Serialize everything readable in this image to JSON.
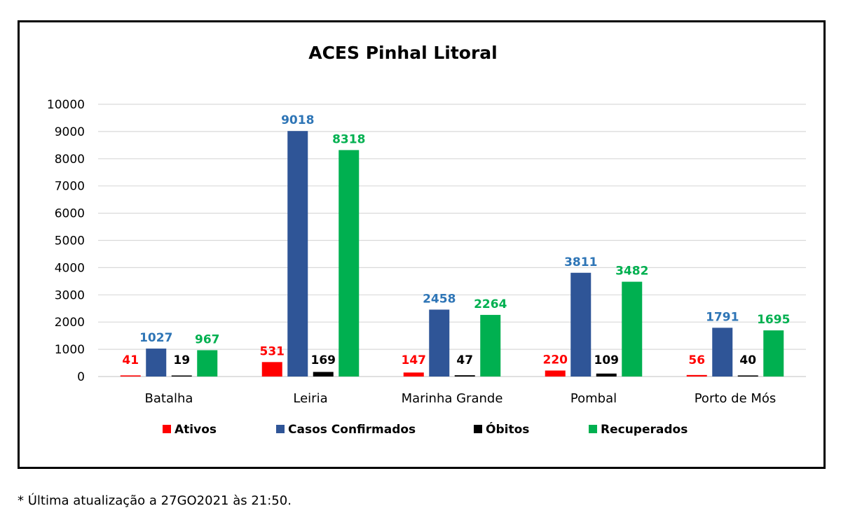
{
  "chart_data": {
    "type": "bar",
    "title": "ACES Pinhal Litoral",
    "categories": [
      "Batalha",
      "Leiria",
      "Marinha Grande",
      "Pombal",
      "Porto de Mós"
    ],
    "series": [
      {
        "name": "Ativos",
        "color": "#ff0000",
        "label_color": "#ff0000",
        "values": [
          41,
          531,
          147,
          220,
          56
        ]
      },
      {
        "name": "Casos Confirmados",
        "color": "#2f5597",
        "label_color": "#2e75b6",
        "values": [
          1027,
          9018,
          2458,
          3811,
          1791
        ]
      },
      {
        "name": "Óbitos",
        "color": "#000000",
        "label_color": "#000000",
        "values": [
          19,
          169,
          47,
          109,
          40
        ]
      },
      {
        "name": "Recuperados",
        "color": "#00b050",
        "label_color": "#00b050",
        "values": [
          967,
          8318,
          2264,
          3482,
          1695
        ]
      }
    ],
    "ylim": [
      0,
      10000
    ],
    "yticks": [
      0,
      1000,
      2000,
      3000,
      4000,
      5000,
      6000,
      7000,
      8000,
      9000,
      10000
    ],
    "grid": true,
    "legend_position": "bottom"
  },
  "footnote": "* Última atualização a 27GO2021 às 21:50."
}
